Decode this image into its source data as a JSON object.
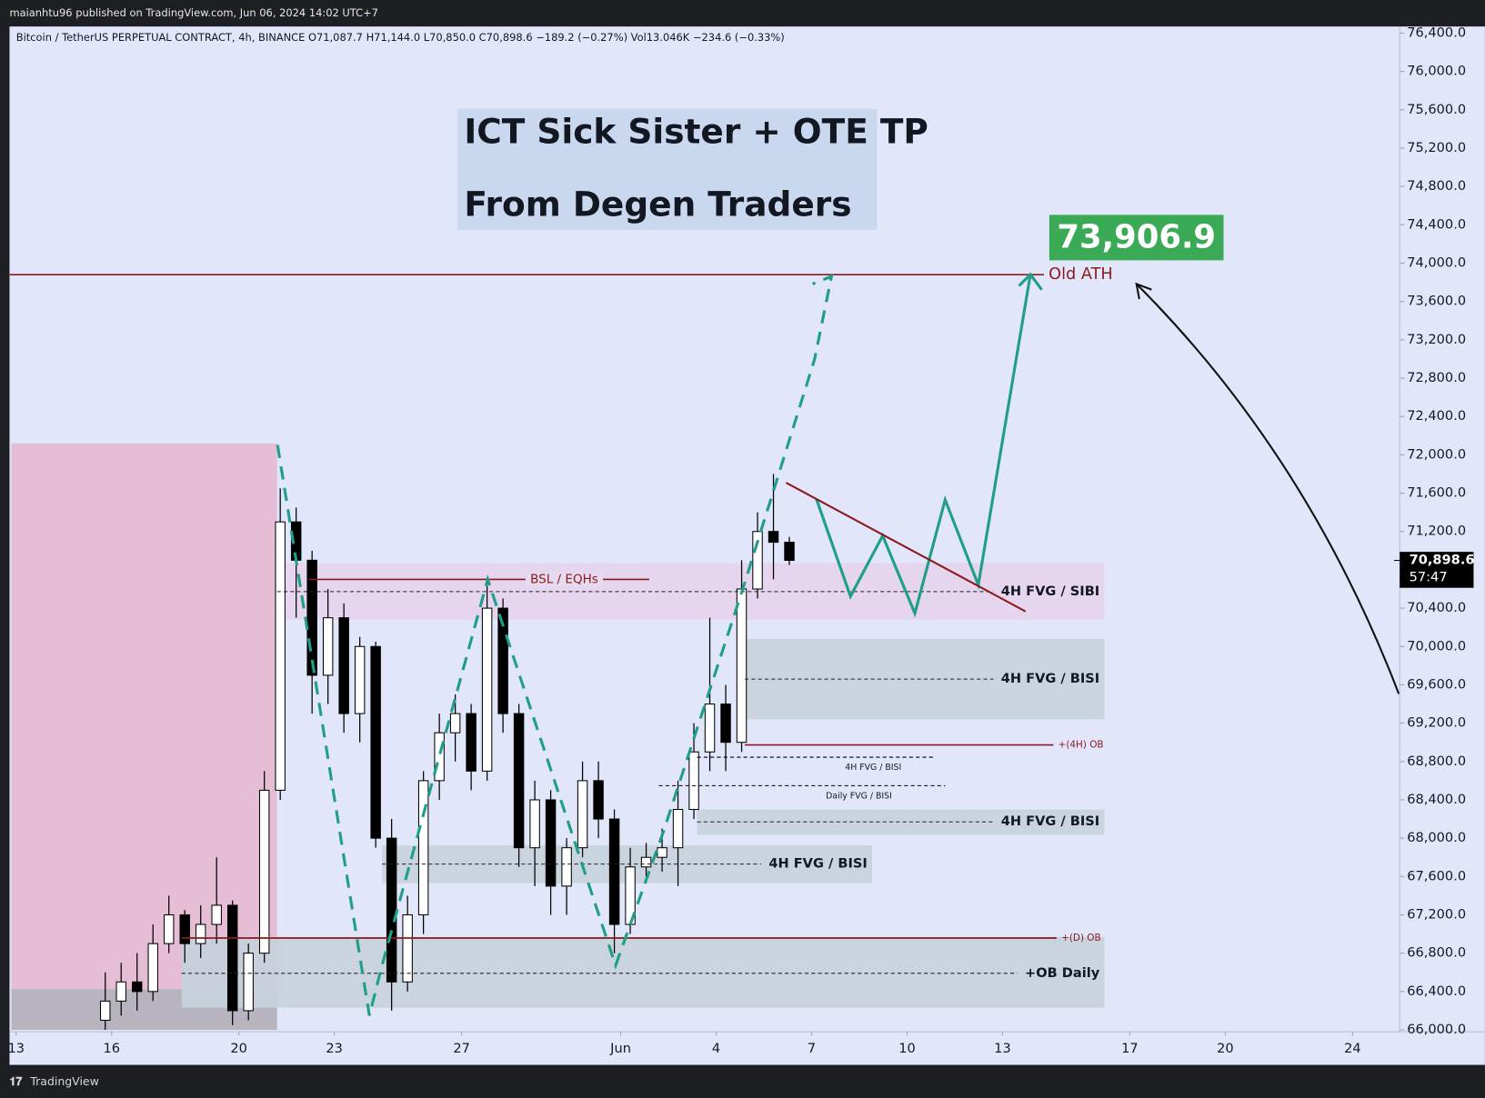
{
  "header": {
    "published": "maianhtu96 published on TradingView.com, Jun 06, 2024 14:02 UTC+7",
    "symbol_line": "Bitcoin / TetherUS PERPETUAL CONTRACT, 4h, BINANCE  O71,087.7  H71,144.0  L70,850.0  C70,898.6  −189.2 (−0.27%)  Vol13.046K  −234.6 (−0.33%)"
  },
  "footer": {
    "brand": "TradingView"
  },
  "chart_data": {
    "type": "candlestick",
    "title": "ICT Sick Sister + OTE TP",
    "subtitle": "From Degen Traders",
    "target_label": "73,906.9",
    "last_price": {
      "value": 70898.6,
      "label": "70,898.6",
      "countdown": "57:47"
    },
    "xlim": [
      -0.2,
      43.5
    ],
    "xticks": [
      {
        "value": 0,
        "label": "13"
      },
      {
        "value": 3,
        "label": "16"
      },
      {
        "value": 7,
        "label": "20"
      },
      {
        "value": 10,
        "label": "23"
      },
      {
        "value": 14,
        "label": "27"
      },
      {
        "value": 19,
        "label": "Jun"
      },
      {
        "value": 22,
        "label": "4"
      },
      {
        "value": 25,
        "label": "7"
      },
      {
        "value": 28,
        "label": "10"
      },
      {
        "value": 31,
        "label": "13"
      },
      {
        "value": 35,
        "label": "17"
      },
      {
        "value": 38,
        "label": "20"
      },
      {
        "value": 42,
        "label": "24"
      }
    ],
    "ylim": [
      66000,
      76400
    ],
    "yticks": [
      {
        "value": 66000,
        "label": "66,000.0"
      },
      {
        "value": 66400,
        "label": "66,400.0"
      },
      {
        "value": 66800,
        "label": "66,800.0"
      },
      {
        "value": 67200,
        "label": "67,200.0"
      },
      {
        "value": 67600,
        "label": "67,600.0"
      },
      {
        "value": 68000,
        "label": "68,000.0"
      },
      {
        "value": 68400,
        "label": "68,400.0"
      },
      {
        "value": 68800,
        "label": "68,800.0"
      },
      {
        "value": 69200,
        "label": "69,200.0"
      },
      {
        "value": 69600,
        "label": "69,600.0"
      },
      {
        "value": 70000,
        "label": "70,000.0"
      },
      {
        "value": 70400,
        "label": "70,400.0"
      },
      {
        "value": 70800,
        "label": "70,800.0"
      },
      {
        "value": 71200,
        "label": "71,200.0"
      },
      {
        "value": 71600,
        "label": "71,600.0"
      },
      {
        "value": 72000,
        "label": "72,000.0"
      },
      {
        "value": 72400,
        "label": "72,400.0"
      },
      {
        "value": 72800,
        "label": "72,800.0"
      },
      {
        "value": 73200,
        "label": "73,200.0"
      },
      {
        "value": 73600,
        "label": "73,600.0"
      },
      {
        "value": 74000,
        "label": "74,000.0"
      },
      {
        "value": 74400,
        "label": "74,400.0"
      },
      {
        "value": 74800,
        "label": "74,800.0"
      },
      {
        "value": 75200,
        "label": "75,200.0"
      },
      {
        "value": 75600,
        "label": "75,600.0"
      },
      {
        "value": 76000,
        "label": "76,000.0"
      },
      {
        "value": 76400,
        "label": "76,400.0"
      }
    ],
    "up_color": "#ffffff",
    "down_color": "#000000",
    "candles": [
      {
        "t": 2.8,
        "o": 66100,
        "h": 66600,
        "l": 66000,
        "c": 66300
      },
      {
        "t": 3.3,
        "o": 66300,
        "h": 66700,
        "l": 66150,
        "c": 66500
      },
      {
        "t": 3.8,
        "o": 66500,
        "h": 66800,
        "l": 66200,
        "c": 66400
      },
      {
        "t": 4.3,
        "o": 66400,
        "h": 67100,
        "l": 66300,
        "c": 66900
      },
      {
        "t": 4.8,
        "o": 66900,
        "h": 67400,
        "l": 66800,
        "c": 67200
      },
      {
        "t": 5.3,
        "o": 67200,
        "h": 67250,
        "l": 66700,
        "c": 66900
      },
      {
        "t": 5.8,
        "o": 66900,
        "h": 67300,
        "l": 66750,
        "c": 67100
      },
      {
        "t": 6.3,
        "o": 67100,
        "h": 67800,
        "l": 66900,
        "c": 67300
      },
      {
        "t": 6.8,
        "o": 67300,
        "h": 67350,
        "l": 66050,
        "c": 66200
      },
      {
        "t": 7.3,
        "o": 66200,
        "h": 66900,
        "l": 66100,
        "c": 66800
      },
      {
        "t": 7.8,
        "o": 66800,
        "h": 68700,
        "l": 66700,
        "c": 68500
      },
      {
        "t": 8.3,
        "o": 68500,
        "h": 71650,
        "l": 68400,
        "c": 71300
      },
      {
        "t": 8.8,
        "o": 71300,
        "h": 71450,
        "l": 70300,
        "c": 70900
      },
      {
        "t": 9.3,
        "o": 70900,
        "h": 71000,
        "l": 69300,
        "c": 69700
      },
      {
        "t": 9.8,
        "o": 69700,
        "h": 70600,
        "l": 69400,
        "c": 70300
      },
      {
        "t": 10.3,
        "o": 70300,
        "h": 70450,
        "l": 69100,
        "c": 69300
      },
      {
        "t": 10.8,
        "o": 69300,
        "h": 70100,
        "l": 69000,
        "c": 70000
      },
      {
        "t": 11.3,
        "o": 70000,
        "h": 70050,
        "l": 67900,
        "c": 68000
      },
      {
        "t": 11.8,
        "o": 68000,
        "h": 68200,
        "l": 66200,
        "c": 66500
      },
      {
        "t": 12.3,
        "o": 66500,
        "h": 67400,
        "l": 66400,
        "c": 67200
      },
      {
        "t": 12.8,
        "o": 67200,
        "h": 68700,
        "l": 67000,
        "c": 68600
      },
      {
        "t": 13.3,
        "o": 68600,
        "h": 69300,
        "l": 68400,
        "c": 69100
      },
      {
        "t": 13.8,
        "o": 69100,
        "h": 69500,
        "l": 68800,
        "c": 69300
      },
      {
        "t": 14.3,
        "o": 69300,
        "h": 69400,
        "l": 68500,
        "c": 68700
      },
      {
        "t": 14.8,
        "o": 68700,
        "h": 70650,
        "l": 68600,
        "c": 70400
      },
      {
        "t": 15.3,
        "o": 70400,
        "h": 70500,
        "l": 69100,
        "c": 69300
      },
      {
        "t": 15.8,
        "o": 69300,
        "h": 69400,
        "l": 67700,
        "c": 67900
      },
      {
        "t": 16.3,
        "o": 67900,
        "h": 68600,
        "l": 67500,
        "c": 68400
      },
      {
        "t": 16.8,
        "o": 68400,
        "h": 68500,
        "l": 67200,
        "c": 67500
      },
      {
        "t": 17.3,
        "o": 67500,
        "h": 68000,
        "l": 67200,
        "c": 67900
      },
      {
        "t": 17.8,
        "o": 67900,
        "h": 68800,
        "l": 67800,
        "c": 68600
      },
      {
        "t": 18.3,
        "o": 68600,
        "h": 68800,
        "l": 68000,
        "c": 68200
      },
      {
        "t": 18.8,
        "o": 68200,
        "h": 68300,
        "l": 66800,
        "c": 67100
      },
      {
        "t": 19.3,
        "o": 67100,
        "h": 67900,
        "l": 67000,
        "c": 67700
      },
      {
        "t": 19.8,
        "o": 67700,
        "h": 67950,
        "l": 67600,
        "c": 67800
      },
      {
        "t": 20.3,
        "o": 67800,
        "h": 68100,
        "l": 67650,
        "c": 67900
      },
      {
        "t": 20.8,
        "o": 67900,
        "h": 68600,
        "l": 67500,
        "c": 68300
      },
      {
        "t": 21.3,
        "o": 68300,
        "h": 69200,
        "l": 68200,
        "c": 68900
      },
      {
        "t": 21.8,
        "o": 68900,
        "h": 70300,
        "l": 68700,
        "c": 69400
      },
      {
        "t": 22.3,
        "o": 69400,
        "h": 69600,
        "l": 68700,
        "c": 69000
      },
      {
        "t": 22.8,
        "o": 69000,
        "h": 70900,
        "l": 68900,
        "c": 70600
      },
      {
        "t": 23.3,
        "o": 70600,
        "h": 71400,
        "l": 70500,
        "c": 71200
      },
      {
        "t": 23.8,
        "o": 71200,
        "h": 71800,
        "l": 70700,
        "c": 71087.7
      },
      {
        "t": 24.3,
        "o": 71087.7,
        "h": 71144,
        "l": 70850,
        "c": 70898.6
      }
    ],
    "zones": [
      {
        "top": 72120,
        "bottom": 66000,
        "x": [
          -0.15,
          8.2
        ],
        "color": "#e6b9d2"
      },
      {
        "top": 66425,
        "bottom": 66000,
        "x": [
          -0.15,
          8.2
        ],
        "color": "#b1b3bd"
      },
      {
        "label": "4H FVG / SIBI",
        "top": 70870,
        "bottom": 70280,
        "mid": 70573,
        "x": [
          8.2,
          34.2
        ],
        "color": "#e7d3ec"
      },
      {
        "label": "4H FVG / BISI",
        "top": 70080,
        "bottom": 69240,
        "mid": 69660,
        "x": [
          22.9,
          34.2
        ],
        "color": "#c6d1dc"
      },
      {
        "label": "4H FVG / BISI",
        "top": 68300,
        "bottom": 68035,
        "mid": 68170,
        "x": [
          21.4,
          34.2
        ],
        "color": "#c6d1dc"
      },
      {
        "label": "4H FVG / BISI",
        "top": 67925,
        "bottom": 67530,
        "mid": 67730,
        "x": [
          11.5,
          26.9
        ],
        "color": "#c6d1dc"
      },
      {
        "label": "+OB Daily",
        "top": 66970,
        "bottom": 66230,
        "mid": 66590,
        "x": [
          5.2,
          34.2
        ],
        "color": "#c6d1dc"
      }
    ],
    "lines": [
      {
        "label": "Old ATH",
        "price": 73880,
        "x": [
          -0.2,
          32.3
        ],
        "kind": "ath",
        "color": "#8b1a1a"
      },
      {
        "label": "BSL / EQHs",
        "price": 70700,
        "x": [
          9.2,
          19.9
        ],
        "kind": "liquidity",
        "color": "#8b1a1a"
      },
      {
        "label": "+(4H) OB",
        "price": 68973,
        "x": [
          22.9,
          32.6
        ],
        "kind": "ob",
        "color": "#8b1a1a"
      },
      {
        "label": "+(D) OB",
        "price": 66958,
        "x": [
          5.2,
          32.7
        ],
        "kind": "ob",
        "color": "#8b1a1a"
      },
      {
        "label": "4H FVG / BISI",
        "price": 68845,
        "x": [
          21.4,
          28.9
        ],
        "kind": "fvg",
        "color": "#000000"
      },
      {
        "label": "Daily FVG / BISI",
        "price": 68548,
        "x": [
          20.2,
          29.2
        ],
        "kind": "fvg",
        "color": "#000000"
      }
    ]
  }
}
